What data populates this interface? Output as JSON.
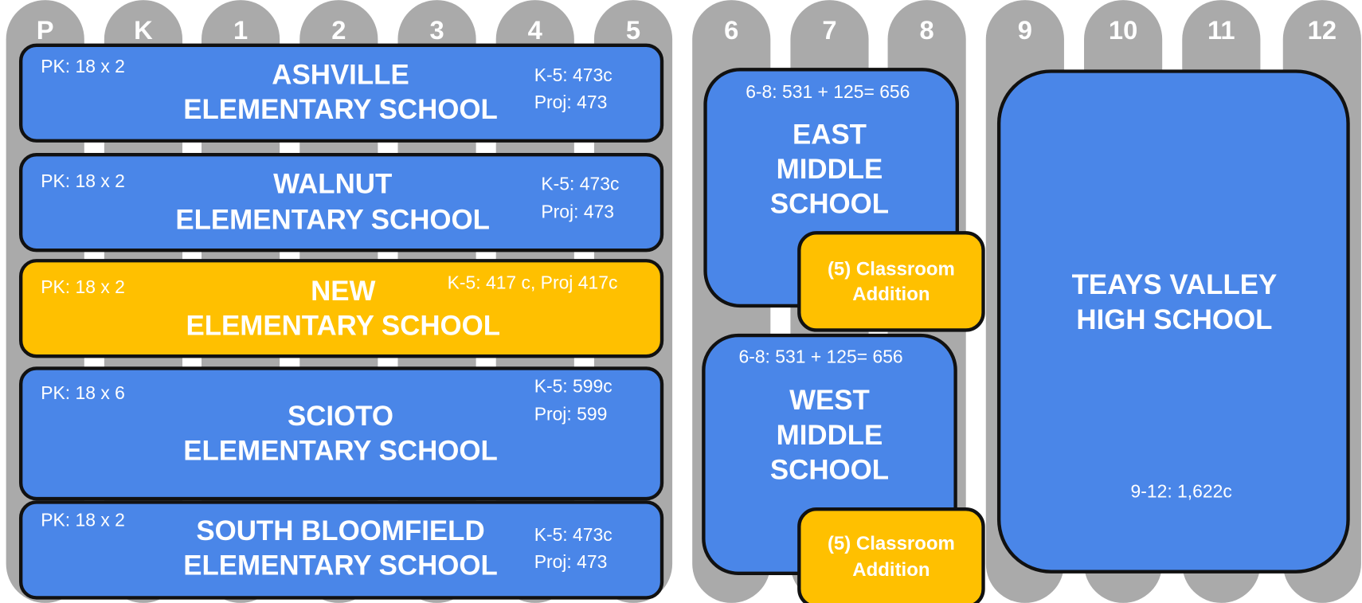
{
  "grades": [
    "P",
    "K",
    "1",
    "2",
    "3",
    "4",
    "5",
    "6",
    "7",
    "8",
    "9",
    "10",
    "11",
    "12"
  ],
  "elementary": [
    {
      "name": [
        "ASHVILLE",
        "ELEMENTARY SCHOOL"
      ],
      "pk": "PK:  18 x 2",
      "capacity": [
        "K-5: 473c",
        "Proj: 473"
      ]
    },
    {
      "name": [
        "WALNUT",
        "ELEMENTARY SCHOOL"
      ],
      "pk": "PK:  18 x 2",
      "capacity": [
        "K-5: 473c",
        "Proj: 473"
      ]
    },
    {
      "name": [
        "NEW",
        "ELEMENTARY SCHOOL"
      ],
      "pk": "PK:  18 x 2",
      "capacity": [
        "K-5: 417 c, Proj 417c"
      ]
    },
    {
      "name": [
        "SCIOTO",
        "ELEMENTARY SCHOOL"
      ],
      "pk": "PK:  18 x 6",
      "capacity": [
        "K-5: 599c",
        "Proj: 599"
      ]
    },
    {
      "name": [
        "SOUTH BLOOMFIELD",
        "ELEMENTARY SCHOOL"
      ],
      "pk": "PK:  18 x 2",
      "capacity": [
        "K-5: 473c",
        "Proj: 473"
      ]
    }
  ],
  "middle": [
    {
      "name": [
        "EAST",
        "MIDDLE",
        "SCHOOL"
      ],
      "capacity": "6-8: 531 + 125= 656",
      "addition": [
        "(5) Classroom",
        "Addition"
      ]
    },
    {
      "name": [
        "WEST",
        "MIDDLE",
        "SCHOOL"
      ],
      "capacity": "6-8: 531 + 125= 656",
      "addition": [
        "(5) Classroom",
        "Addition"
      ]
    }
  ],
  "high": {
    "name": [
      "TEAYS VALLEY",
      "HIGH SCHOOL"
    ],
    "capacity": "9-12: 1,622c"
  }
}
